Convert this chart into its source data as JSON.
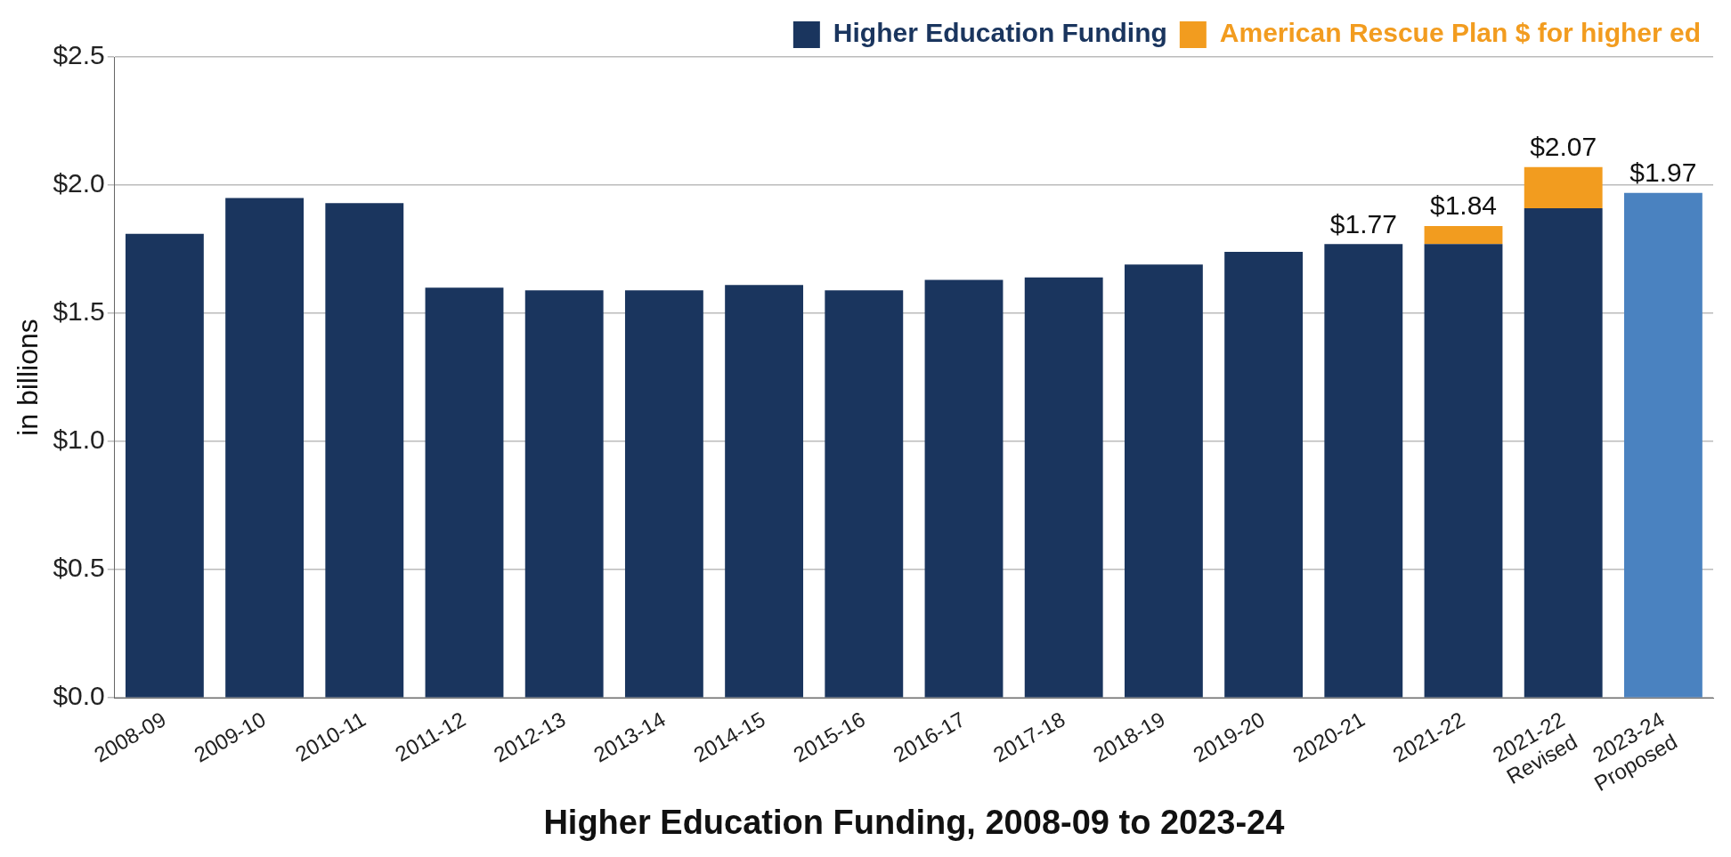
{
  "chart_data": {
    "type": "bar",
    "stacked": true,
    "xlabel": "Higher Education Funding, 2008-09 to 2023-24",
    "ylabel": "in billions",
    "categories": [
      "2008-09",
      "2009-10",
      "2010-11",
      "2011-12",
      "2012-13",
      "2013-14",
      "2014-15",
      "2015-16",
      "2016-17",
      "2017-18",
      "2018-19",
      "2019-20",
      "2020-21",
      "2021-22",
      "2021-22\nRevised",
      "2023-24\nProposed"
    ],
    "series": [
      {
        "name": "Higher Education Funding",
        "color": "#1a355e",
        "colors": [
          "#1a355e",
          "#1a355e",
          "#1a355e",
          "#1a355e",
          "#1a355e",
          "#1a355e",
          "#1a355e",
          "#1a355e",
          "#1a355e",
          "#1a355e",
          "#1a355e",
          "#1a355e",
          "#1a355e",
          "#1a355e",
          "#1a355e",
          "#4a82c0"
        ],
        "values": [
          1.81,
          1.95,
          1.93,
          1.6,
          1.59,
          1.59,
          1.61,
          1.59,
          1.63,
          1.64,
          1.69,
          1.74,
          1.77,
          1.77,
          1.91,
          1.97
        ]
      },
      {
        "name": "American Rescue Plan $ for higher ed",
        "color": "#f29c1f",
        "values": [
          null,
          null,
          null,
          null,
          null,
          null,
          null,
          null,
          null,
          null,
          null,
          null,
          null,
          0.07,
          0.16,
          null
        ]
      }
    ],
    "totals": [
      null,
      null,
      null,
      null,
      null,
      null,
      null,
      null,
      null,
      null,
      null,
      null,
      "$1.77",
      "$1.84",
      "$2.07",
      "$1.97"
    ],
    "ylim": [
      0,
      2.5
    ],
    "yticks": [
      {
        "value": 0,
        "label": "$0.0"
      },
      {
        "value": 0.5,
        "label": "$0.5"
      },
      {
        "value": 1,
        "label": "$1.0"
      },
      {
        "value": 1.5,
        "label": "$1.5"
      },
      {
        "value": 2,
        "label": "$2.0"
      },
      {
        "value": 2.5,
        "label": "$2.5"
      }
    ],
    "grid": "y",
    "legend": "top right"
  }
}
